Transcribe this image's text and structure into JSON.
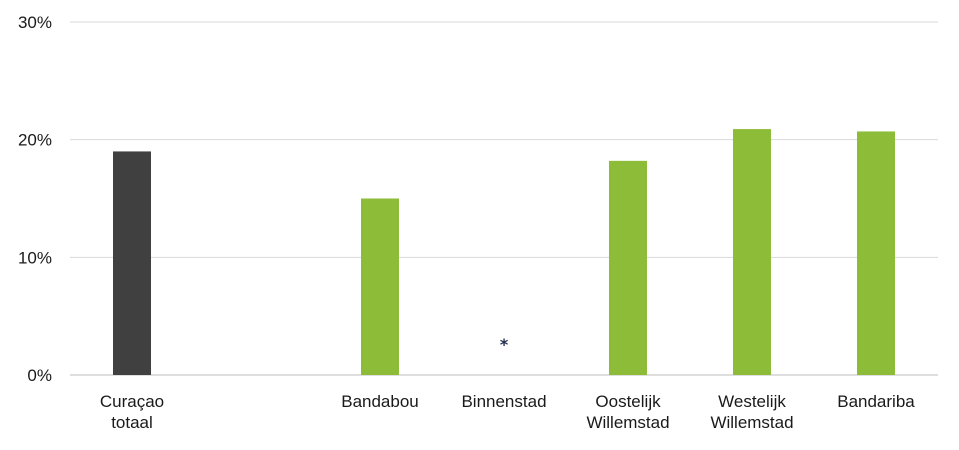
{
  "chart_data": {
    "type": "bar",
    "categories": [
      [
        "Curaçao",
        "totaal"
      ],
      [
        ""
      ],
      [
        "Bandabou"
      ],
      [
        "Binnenstad"
      ],
      [
        "Oostelijk",
        "Willemstad"
      ],
      [
        "Westelijk",
        "Willemstad"
      ],
      [
        "Bandariba"
      ]
    ],
    "values": [
      19.0,
      null,
      15.0,
      null,
      18.2,
      20.9,
      20.7
    ],
    "bar_colors": [
      "#404040",
      "#8dbd38",
      "#8dbd38",
      "#8dbd38",
      "#8dbd38",
      "#8dbd38",
      "#8dbd38"
    ],
    "annotations": [
      {
        "category_index": 3,
        "text": "*"
      }
    ],
    "yticks": [
      "0%",
      "10%",
      "20%",
      "30%"
    ],
    "ylim": [
      0,
      30
    ],
    "grid": true,
    "title": "",
    "xlabel": "",
    "ylabel": ""
  }
}
